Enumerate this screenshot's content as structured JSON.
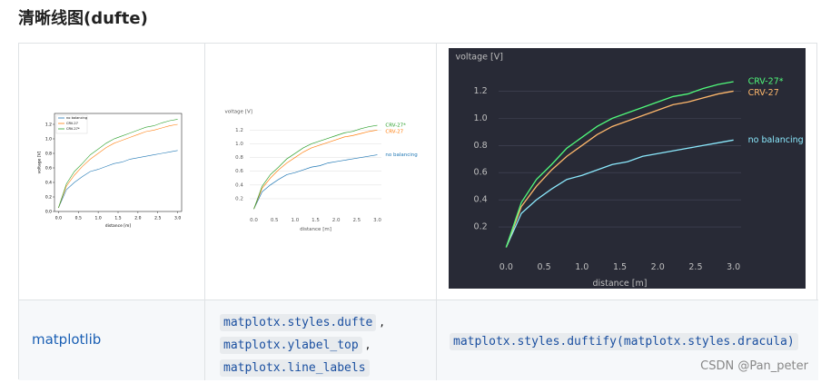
{
  "heading": "清晰线图(dufte)",
  "plot": {
    "x": [
      0,
      0.2,
      0.4,
      0.6,
      0.8,
      1.0,
      1.2,
      1.4,
      1.6,
      1.8,
      2.0,
      2.2,
      2.4,
      2.6,
      2.8,
      3.0
    ],
    "series": [
      {
        "name": "no balancing",
        "values": [
          0.05,
          0.3,
          0.4,
          0.48,
          0.55,
          0.58,
          0.62,
          0.66,
          0.68,
          0.72,
          0.74,
          0.76,
          0.78,
          0.8,
          0.82,
          0.84
        ]
      },
      {
        "name": "CRV-27",
        "values": [
          0.05,
          0.35,
          0.5,
          0.62,
          0.72,
          0.8,
          0.88,
          0.94,
          0.98,
          1.02,
          1.06,
          1.1,
          1.12,
          1.15,
          1.18,
          1.2
        ]
      },
      {
        "name": "CRV-27*",
        "values": [
          0.05,
          0.38,
          0.55,
          0.66,
          0.78,
          0.86,
          0.94,
          1.0,
          1.04,
          1.08,
          1.12,
          1.16,
          1.18,
          1.22,
          1.25,
          1.27
        ]
      }
    ],
    "xlim": [
      -0.1,
      3.1
    ],
    "ylim": [
      0,
      1.35
    ],
    "xticks": [
      {
        "value": 0,
        "label": "0.0"
      },
      0.5,
      {
        "value": 1,
        "label": "1.0"
      },
      1.5,
      {
        "value": 2,
        "label": "2.0"
      },
      2.5,
      {
        "value": 3,
        "label": "3.0"
      }
    ],
    "xlabel": "distance [m]",
    "ylabel": "voltage [V]"
  },
  "table": {
    "rows": [
      [
        {
          "chart": {
            "style": "classic",
            "legend": "upper left",
            "background": "#ffffff",
            "text_color": "#000000",
            "colors": [
              "#1f77b4",
              "#ff7f0e",
              "#2ca02c"
            ],
            "yticks": [
              {
                "value": 0,
                "label": "0.0"
              },
              0.2,
              0.4,
              0.6,
              0.8,
              {
                "value": 1,
                "label": "1.0"
              },
              1.2
            ]
          }
        },
        {
          "chart": {
            "style": "dufte",
            "legend": "line labels",
            "background": "#ffffff",
            "text_color": "#555555",
            "colors": [
              "#1f77b4",
              "#ff7f0e",
              "#2ca02c"
            ],
            "yticks": [
              0.2,
              0.4,
              0.6,
              0.8,
              {
                "value": 1,
                "label": "1.0"
              },
              1.2
            ]
          }
        },
        {
          "chart": {
            "style": "dufte",
            "legend": "line labels",
            "background": "#282a36",
            "text_color": "#bfbfbf",
            "colors": [
              "#8be9fd",
              "#ffb86c",
              "#50fa7b"
            ],
            "yticks": [
              0.2,
              0.4,
              0.6,
              0.8,
              {
                "value": 1,
                "label": "1.0"
              },
              1.2
            ]
          }
        }
      ],
      [
        "matplotlib",
        {
          "codes": [
            "matplotx.styles.dufte",
            "matplotx.ylabel_top",
            "matplotx.line_labels"
          ],
          "separators": [
            ",",
            ","
          ]
        },
        {
          "codes": [
            "matplotx.styles.duftify(matplotx.styles.dracula)"
          ]
        }
      ]
    ]
  },
  "watermark": "CSDN @Pan_peter"
}
